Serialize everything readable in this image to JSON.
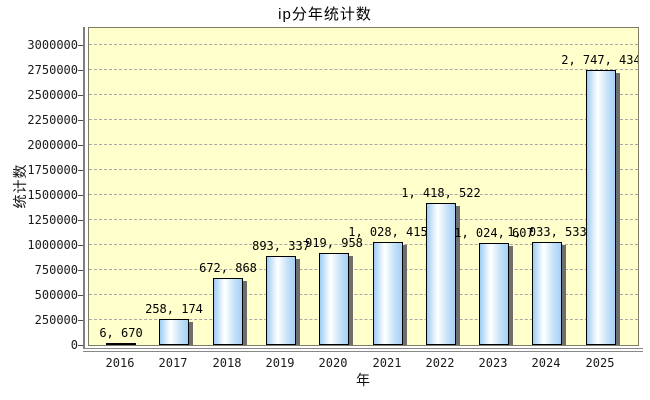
{
  "chart_data": {
    "type": "bar",
    "title": "ip分年统计数",
    "xlabel": "年",
    "ylabel": "统计数",
    "categories": [
      "2016",
      "2017",
      "2018",
      "2019",
      "2020",
      "2021",
      "2022",
      "2023",
      "2024",
      "2025"
    ],
    "values": [
      6670,
      258174,
      672868,
      893337,
      919958,
      1028415,
      1418522,
      1024607,
      1033533,
      2747434
    ],
    "value_labels": [
      "6, 670",
      "258, 174",
      "672, 868",
      "893, 337",
      "919, 958",
      "1, 028, 415",
      "1, 418, 522",
      "1, 024, 607",
      "1, 033, 533",
      "2, 747, 434"
    ],
    "ylim": [
      0,
      3000000
    ],
    "ytick_step": 250000,
    "yticks": [
      "0",
      "250000",
      "500000",
      "750000",
      "1000000",
      "1250000",
      "1500000",
      "1750000",
      "2000000",
      "2250000",
      "2500000",
      "2750000",
      "3000000"
    ],
    "grid": "horizontal-dashed",
    "legend": "none",
    "colors": {
      "plot_background": "#ffffcc",
      "page_background": "#ffffff",
      "bar_edge_blue": "#9fccf3",
      "bar_highlight": "#ffffff",
      "bar_border": "#000000",
      "bar_shadow": "#6e6e6e",
      "gridline": "#a8a8a8",
      "axis_line": "#7e7e7e",
      "text": "#000000"
    }
  }
}
